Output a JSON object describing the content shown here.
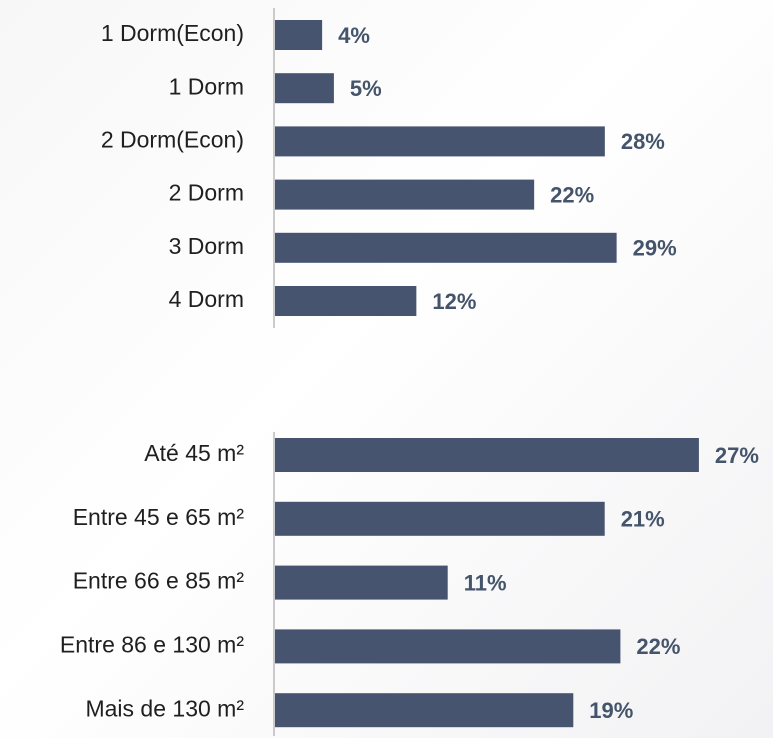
{
  "chart_data": [
    {
      "type": "bar",
      "orientation": "horizontal",
      "color": "#465470",
      "categories": [
        "1 Dorm(Econ)",
        "1 Dorm",
        "2 Dorm(Econ)",
        "2 Dorm",
        "3 Dorm",
        "4 Dorm"
      ],
      "values": [
        4,
        5,
        28,
        22,
        29,
        12
      ],
      "value_labels": [
        "4%",
        "5%",
        "28%",
        "22%",
        "29%",
        "12%"
      ]
    },
    {
      "type": "bar",
      "orientation": "horizontal",
      "color": "#465470",
      "categories": [
        "Até 45 m²",
        "Entre 45 e 65 m²",
        "Entre 66 e 85 m²",
        "Entre 86 e 130 m²",
        "Mais de 130 m²"
      ],
      "values": [
        27,
        21,
        11,
        22,
        19
      ],
      "value_labels": [
        "27%",
        "21%",
        "11%",
        "22%",
        "19%"
      ]
    }
  ]
}
